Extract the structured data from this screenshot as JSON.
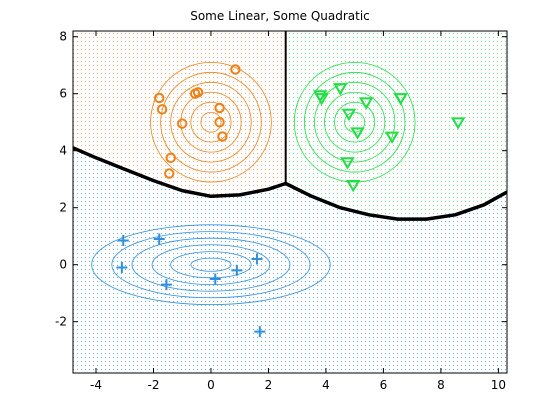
{
  "chart_data": {
    "type": "scatter",
    "title": "Some Linear, Some Quadratic",
    "xlabel": "",
    "ylabel": "",
    "xlim": [
      -4.8,
      10.3
    ],
    "ylim": [
      -3.8,
      8.2
    ],
    "x_ticks": [
      -4,
      -2,
      0,
      2,
      4,
      6,
      8,
      10
    ],
    "y_ticks": [
      -2,
      0,
      2,
      4,
      6,
      8
    ],
    "grid": false,
    "legend": "none",
    "colors": {
      "orange": "#f07f14",
      "green": "#1fe041",
      "blue": "#2f8fe0",
      "orange_region": "#f5b07a",
      "green_region": "#7fe69a",
      "blue_region": "#6ab0e8",
      "boundary": "#000000"
    },
    "series": [
      {
        "marker": "circle",
        "color": "#f07f14",
        "points": [
          [
            0.85,
            6.85
          ],
          [
            -1.8,
            5.85
          ],
          [
            -1.7,
            5.45
          ],
          [
            -0.55,
            6.0
          ],
          [
            -0.45,
            6.05
          ],
          [
            0.3,
            5.5
          ],
          [
            0.3,
            5.0
          ],
          [
            -1.0,
            4.95
          ],
          [
            0.4,
            4.5
          ],
          [
            -1.4,
            3.75
          ],
          [
            -1.45,
            3.2
          ]
        ]
      },
      {
        "marker": "triangle-down",
        "color": "#1fe041",
        "points": [
          [
            3.8,
            5.95
          ],
          [
            3.85,
            5.85
          ],
          [
            4.5,
            6.2
          ],
          [
            5.4,
            5.7
          ],
          [
            6.6,
            5.85
          ],
          [
            4.8,
            5.3
          ],
          [
            5.1,
            4.65
          ],
          [
            6.3,
            4.5
          ],
          [
            8.6,
            5.0
          ],
          [
            4.75,
            3.6
          ],
          [
            4.95,
            2.8
          ]
        ]
      },
      {
        "marker": "plus",
        "color": "#2f8fe0",
        "points": [
          [
            -3.05,
            0.85
          ],
          [
            -1.8,
            0.9
          ],
          [
            -3.1,
            -0.1
          ],
          [
            -1.55,
            -0.7
          ],
          [
            0.15,
            -0.5
          ],
          [
            0.9,
            -0.2
          ],
          [
            1.6,
            0.2
          ],
          [
            1.7,
            -2.35
          ]
        ]
      }
    ],
    "contours": [
      {
        "color": "#f07f14",
        "center": [
          0.0,
          5.0
        ],
        "radii_x": [
          0.35,
          0.7,
          1.05,
          1.4,
          1.75,
          2.1
        ],
        "radii_y": [
          0.35,
          0.7,
          1.05,
          1.4,
          1.75,
          2.1
        ]
      },
      {
        "color": "#1fe041",
        "center": [
          5.0,
          5.0
        ],
        "radii_x": [
          0.35,
          0.7,
          1.05,
          1.4,
          1.75,
          2.1
        ],
        "radii_y": [
          0.35,
          0.7,
          1.05,
          1.4,
          1.75,
          2.1
        ]
      },
      {
        "color": "#2f8fe0",
        "center": [
          0.0,
          0.0
        ],
        "radii_x": [
          0.7,
          1.4,
          2.05,
          2.75,
          3.45,
          4.15
        ],
        "radii_y": [
          0.23,
          0.46,
          0.7,
          0.93,
          1.16,
          1.4
        ]
      }
    ],
    "boundary_vertical_x": 2.6,
    "boundary_curve_left": [
      [
        -4.8,
        4.1
      ],
      [
        -4.0,
        3.75
      ],
      [
        -3.0,
        3.35
      ],
      [
        -2.0,
        2.95
      ],
      [
        -1.0,
        2.6
      ],
      [
        0.0,
        2.4
      ],
      [
        1.0,
        2.45
      ],
      [
        2.0,
        2.65
      ],
      [
        2.6,
        2.85
      ]
    ],
    "boundary_curve_right": [
      [
        2.6,
        2.85
      ],
      [
        3.5,
        2.4
      ],
      [
        4.5,
        2.0
      ],
      [
        5.5,
        1.75
      ],
      [
        6.5,
        1.6
      ],
      [
        7.5,
        1.6
      ],
      [
        8.5,
        1.75
      ],
      [
        9.5,
        2.1
      ],
      [
        10.3,
        2.55
      ]
    ]
  }
}
